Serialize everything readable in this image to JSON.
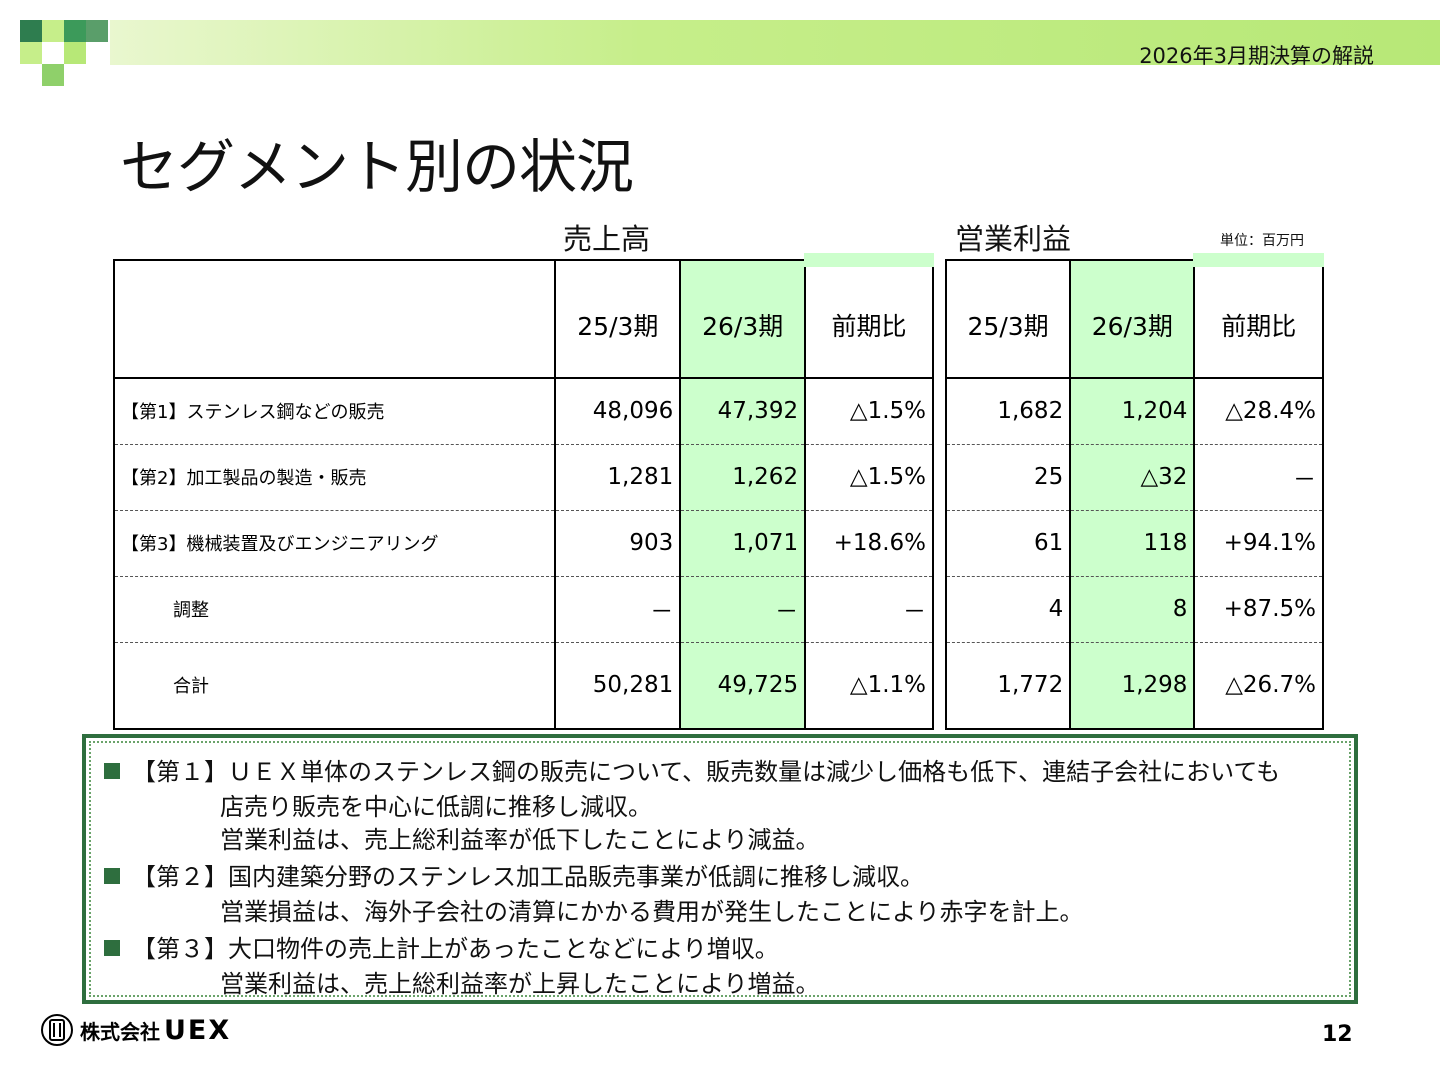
{
  "header": {
    "subtitle": "2026年3月期決算の解説"
  },
  "title": "セグメント別の状況",
  "groups": {
    "sales": "売上高",
    "profit": "営業利益",
    "unit": "単位：百万円"
  },
  "columns": {
    "prev": "25/3期",
    "curr": "26/3期",
    "ratio": "前期比"
  },
  "rows": [
    {
      "label": "【第1】ステンレス鋼などの販売",
      "s_prev": "48,096",
      "s_curr": "47,392",
      "s_ratio": "△1.5%",
      "p_prev": "1,682",
      "p_curr": "1,204",
      "p_ratio": "△28.4%"
    },
    {
      "label": "【第2】加工製品の製造・販売",
      "s_prev": "1,281",
      "s_curr": "1,262",
      "s_ratio": "△1.5%",
      "p_prev": "25",
      "p_curr": "△32",
      "p_ratio": "－"
    },
    {
      "label": "【第3】機械装置及びエンジニアリング",
      "s_prev": "903",
      "s_curr": "1,071",
      "s_ratio": "+18.6%",
      "p_prev": "61",
      "p_curr": "118",
      "p_ratio": "+94.1%"
    },
    {
      "label": "調整",
      "s_prev": "－",
      "s_curr": "－",
      "s_ratio": "－",
      "p_prev": "4",
      "p_curr": "8",
      "p_ratio": "+87.5%"
    },
    {
      "label": "合計",
      "s_prev": "50,281",
      "s_curr": "49,725",
      "s_ratio": "△1.1%",
      "p_prev": "1,772",
      "p_curr": "1,298",
      "p_ratio": "△26.7%"
    }
  ],
  "notes": [
    "【第１】ＵＥＸ単体のステンレス鋼の販売について、販売数量は減少し価格も低下、連結子会社においても",
    "店売り販売を中心に低調に推移し減収。",
    "営業利益は、売上総利益率が低下したことにより減益。",
    "【第２】国内建築分野のステンレス加工品販売事業が低調に推移し減収。",
    "営業損益は、海外子会社の清算にかかる費用が発生したことにより赤字を計上。",
    "【第３】大口物件の売上計上があったことなどにより増収。",
    "営業利益は、売上総利益率が上昇したことにより増益。"
  ],
  "footer": {
    "company": "株式会社",
    "brand": "UEX",
    "page": "12"
  },
  "colors": {
    "accent": "#2e6e3e",
    "highlight": "#ccffcc",
    "band": "#b7e877"
  }
}
